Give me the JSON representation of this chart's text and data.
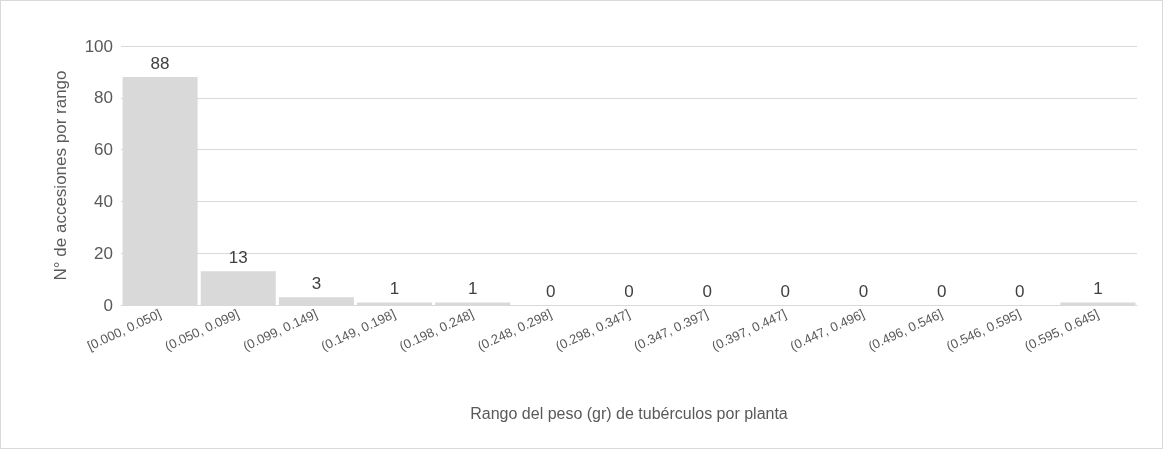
{
  "chart_data": {
    "type": "bar",
    "xlabel": "Rango del peso (gr) de tubérculos por planta",
    "ylabel": "N° de accesiones por rango",
    "categories": [
      "[0.000, 0.050]",
      "(0.050, 0.099]",
      "(0.099, 0.149]",
      "(0.149, 0.198]",
      "(0.198, 0.248]",
      "(0.248, 0.298]",
      "(0.298, 0.347]",
      "(0.347, 0.397]",
      "(0.397, 0.447]",
      "(0.447, 0.496]",
      "(0.496, 0.546]",
      "(0.546, 0.595]",
      "(0.595, 0.645]"
    ],
    "values": [
      88,
      13,
      3,
      1,
      1,
      0,
      0,
      0,
      0,
      0,
      0,
      0,
      1
    ],
    "color": "#d9d9d9",
    "ylim": [
      0,
      100
    ],
    "yticks": [
      0,
      20,
      40,
      60,
      80,
      100
    ],
    "grid": "y",
    "data_labels": true
  }
}
